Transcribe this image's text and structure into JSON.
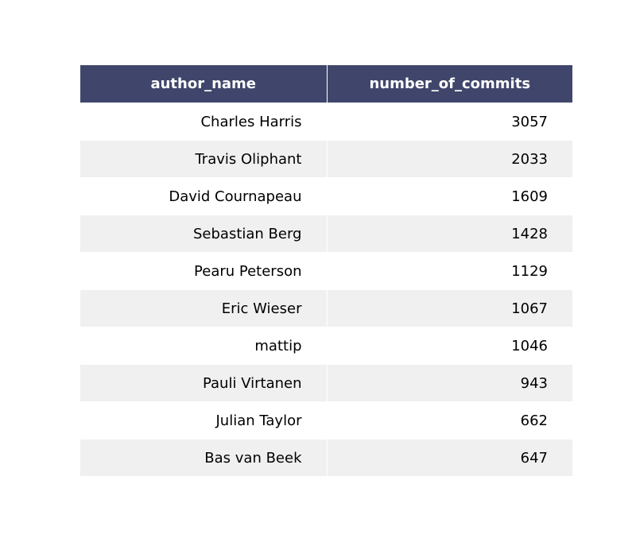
{
  "chart_data": {
    "type": "table",
    "columns": [
      "author_name",
      "number_of_commits"
    ],
    "rows": [
      [
        "Charles Harris",
        "3057"
      ],
      [
        "Travis Oliphant",
        "2033"
      ],
      [
        "David Cournapeau",
        "1609"
      ],
      [
        "Sebastian Berg",
        "1428"
      ],
      [
        "Pearu Peterson",
        "1129"
      ],
      [
        "Eric Wieser",
        "1067"
      ],
      [
        "mattip",
        "1046"
      ],
      [
        "Pauli Virtanen",
        "943"
      ],
      [
        "Julian Taylor",
        "662"
      ],
      [
        "Bas van Beek",
        "647"
      ]
    ],
    "colors": {
      "header_bg": "#40466b",
      "header_text": "#ffffff",
      "row_alt_bg": "#f0f0f0",
      "row_bg": "#ffffff"
    }
  }
}
